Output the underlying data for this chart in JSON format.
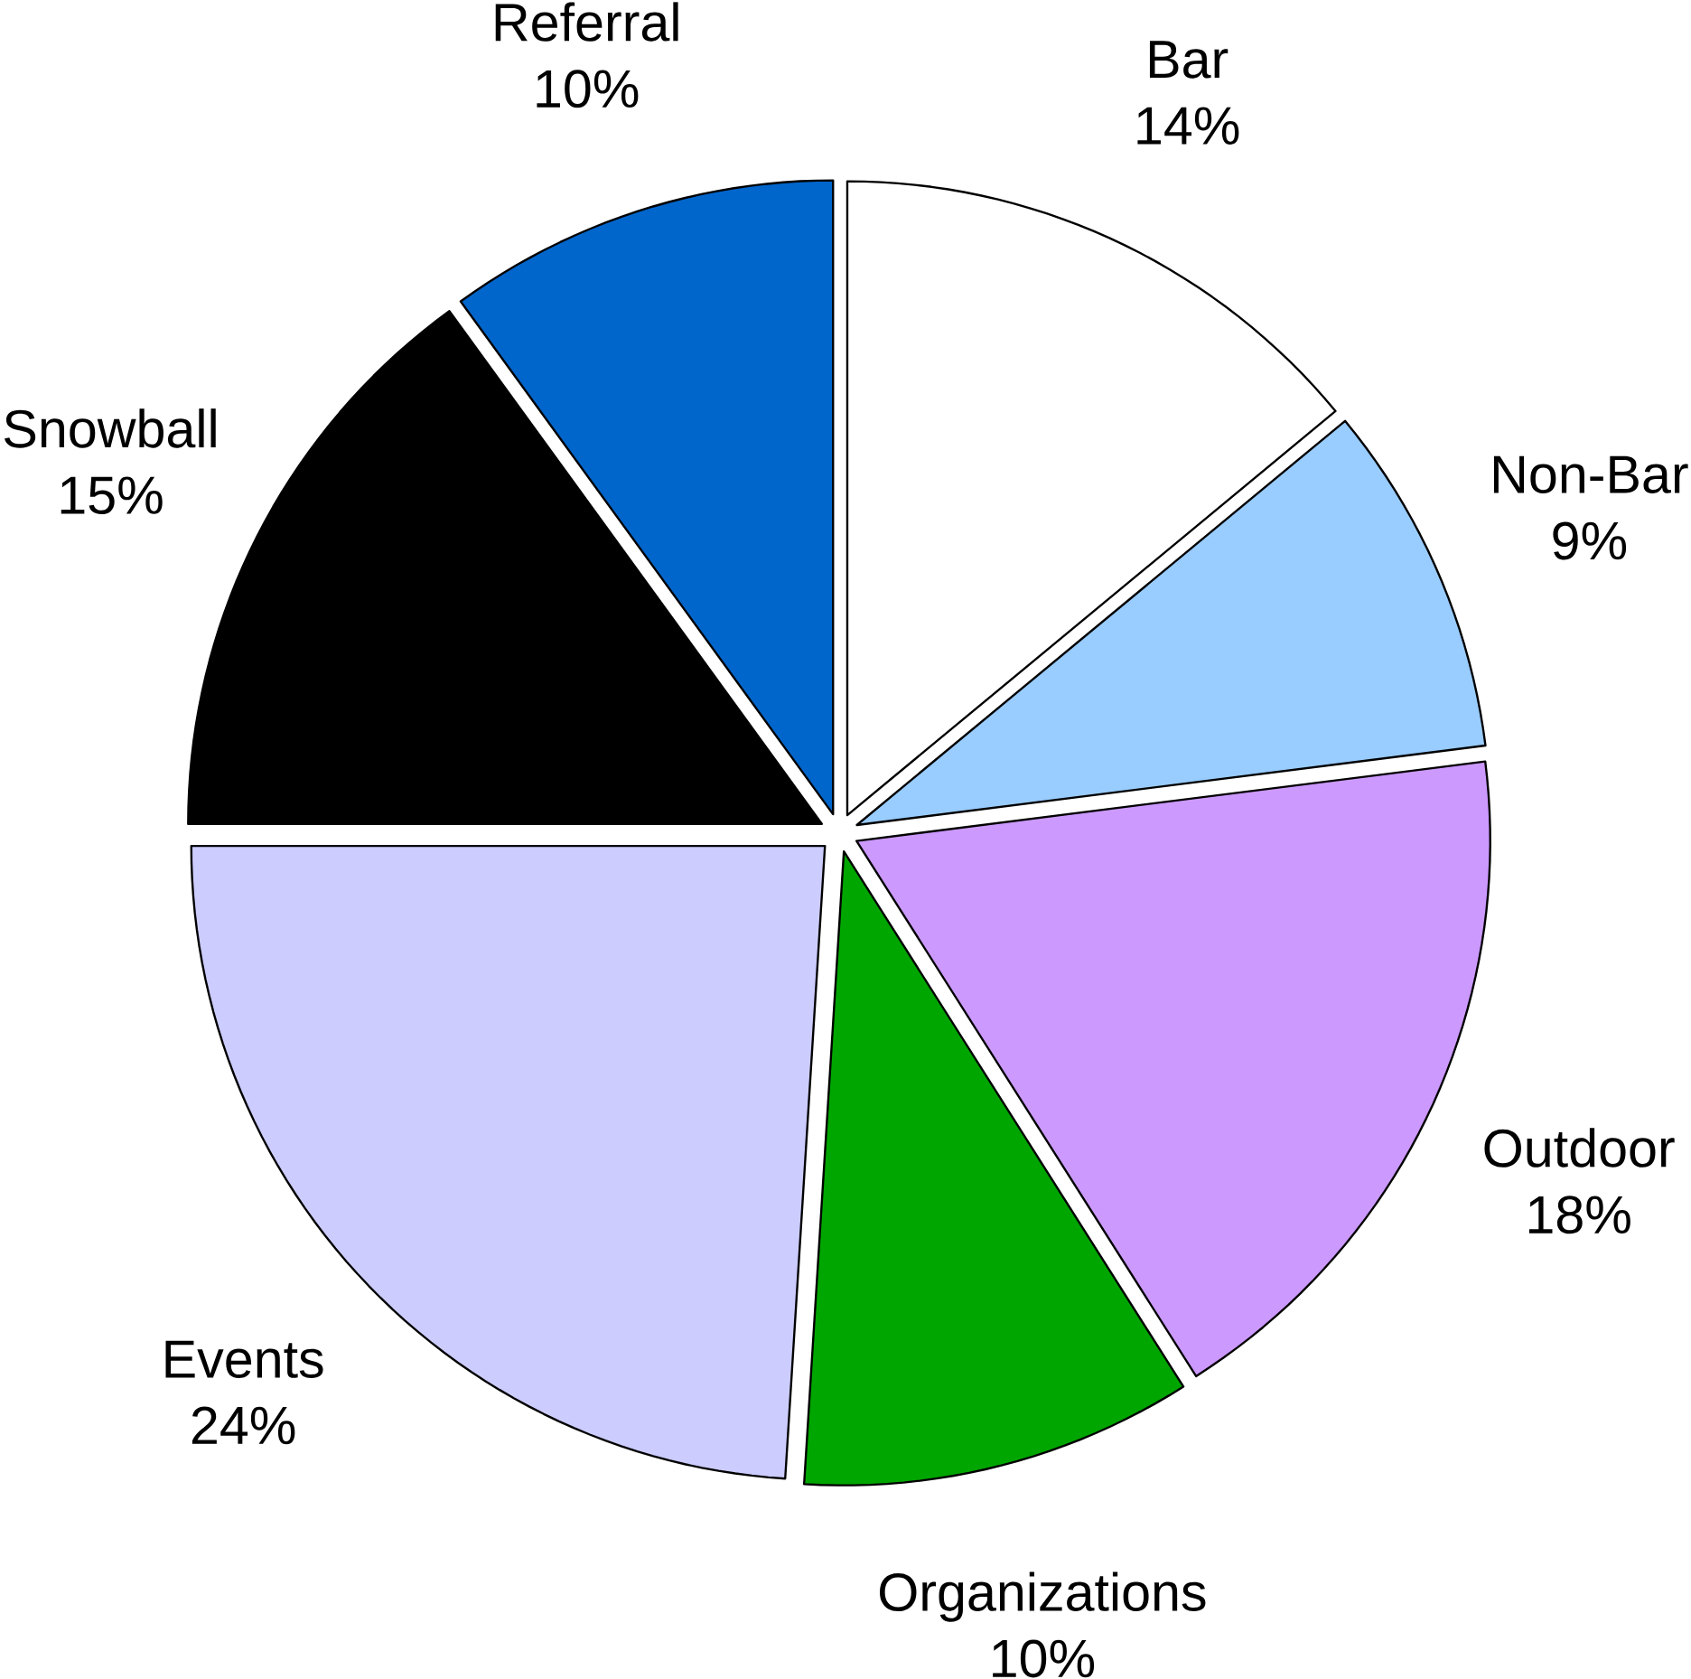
{
  "chart_data": {
    "type": "pie",
    "categories": [
      "Bar",
      "Non-Bar",
      "Outdoor",
      "Organizations",
      "Events",
      "Snowball",
      "Referral"
    ],
    "values": [
      14,
      9,
      18,
      10,
      24,
      15,
      10
    ],
    "value_labels": [
      "14%",
      "9%",
      "18%",
      "10%",
      "24%",
      "15%",
      "10%"
    ],
    "colors": [
      "#ffffff",
      "#99ccff",
      "#cc99ff",
      "#00a600",
      "#ccccff",
      "#000000",
      "#0066cc"
    ]
  }
}
